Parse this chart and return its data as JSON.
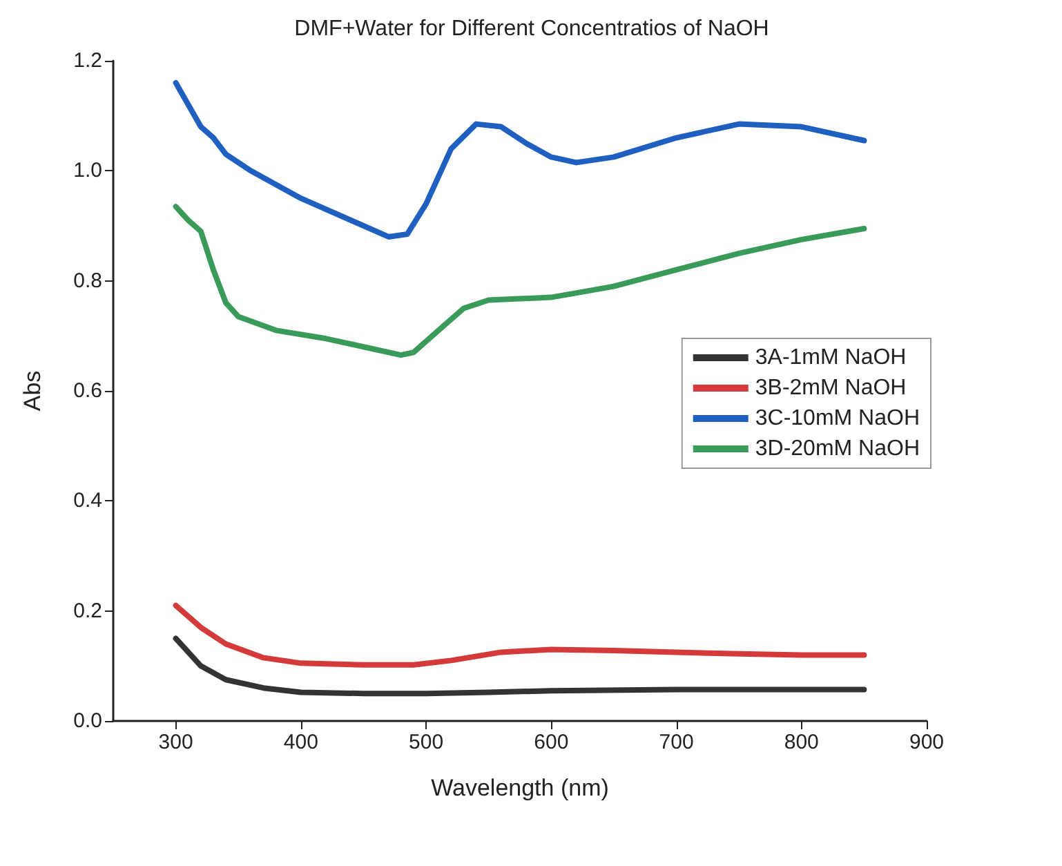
{
  "chart_data": {
    "type": "line",
    "title": "DMF+Water for Different Concentratios of NaOH",
    "xlabel": "Wavelength (nm)",
    "ylabel": "Abs",
    "xlim": [
      250,
      900
    ],
    "xticks": [
      300,
      400,
      500,
      600,
      700,
      800,
      900
    ],
    "ylim": [
      0,
      1.2
    ],
    "yticks": [
      {
        "value": 0,
        "label": "0.0"
      },
      {
        "value": 0.2,
        "label": "0.2"
      },
      {
        "value": 0.4,
        "label": "0.4"
      },
      {
        "value": 0.6,
        "label": "0.6"
      },
      {
        "value": 0.8,
        "label": "0.8"
      },
      {
        "value": 1,
        "label": "1.0"
      },
      {
        "value": 1.2,
        "label": "1.2"
      }
    ],
    "grid": false,
    "legend": "right",
    "marker": "none",
    "line_style": "solid",
    "series": [
      {
        "name": "3A-1mM NaOH",
        "color": "#333333",
        "x": [
          300,
          310,
          320,
          340,
          370,
          400,
          450,
          500,
          550,
          600,
          700,
          800,
          850
        ],
        "values": [
          0.15,
          0.125,
          0.1,
          0.075,
          0.06,
          0.052,
          0.05,
          0.05,
          0.052,
          0.055,
          0.057,
          0.057,
          0.057
        ]
      },
      {
        "name": "3B-2mM NaOH",
        "color": "#d43a3a",
        "x": [
          300,
          320,
          340,
          370,
          400,
          450,
          490,
          520,
          560,
          600,
          650,
          700,
          750,
          800,
          850
        ],
        "values": [
          0.21,
          0.17,
          0.14,
          0.115,
          0.105,
          0.102,
          0.102,
          0.11,
          0.125,
          0.13,
          0.128,
          0.125,
          0.122,
          0.12,
          0.12
        ]
      },
      {
        "name": "3C-10mM NaOH",
        "color": "#1f5fbf",
        "x": [
          300,
          310,
          320,
          330,
          340,
          360,
          400,
          440,
          470,
          485,
          500,
          520,
          540,
          560,
          580,
          600,
          620,
          650,
          700,
          750,
          800,
          850
        ],
        "values": [
          1.16,
          1.12,
          1.08,
          1.06,
          1.03,
          1.0,
          0.95,
          0.91,
          0.88,
          0.885,
          0.94,
          1.04,
          1.085,
          1.08,
          1.05,
          1.025,
          1.015,
          1.025,
          1.06,
          1.085,
          1.08,
          1.055
        ]
      },
      {
        "name": "3D-20mM NaOH",
        "color": "#3a9a5a",
        "x": [
          300,
          310,
          320,
          330,
          340,
          350,
          380,
          420,
          460,
          480,
          490,
          510,
          530,
          550,
          600,
          650,
          700,
          750,
          800,
          850
        ],
        "values": [
          0.935,
          0.91,
          0.89,
          0.82,
          0.76,
          0.735,
          0.71,
          0.695,
          0.675,
          0.665,
          0.67,
          0.71,
          0.75,
          0.765,
          0.77,
          0.79,
          0.82,
          0.85,
          0.875,
          0.895
        ]
      }
    ]
  }
}
